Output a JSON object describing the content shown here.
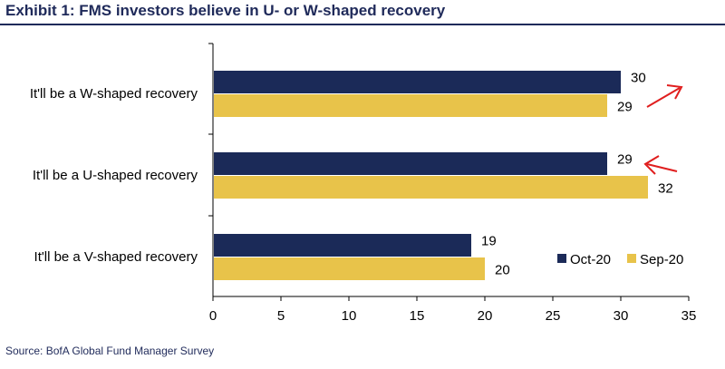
{
  "title": "Exhibit 1: FMS investors believe in U- or W-shaped recovery",
  "source": "Source: BofA Global Fund Manager Survey",
  "colors": {
    "oct": "#1b2a58",
    "sep": "#e8c34a",
    "arrow": "#e01e1e",
    "title": "#1f2a5a"
  },
  "chart_data": {
    "type": "bar",
    "orientation": "horizontal",
    "categories": [
      "It'll be a W-shaped recovery",
      "It'll be a U-shaped recovery",
      "It'll be a V-shaped recovery"
    ],
    "series": [
      {
        "name": "Oct-20",
        "values": [
          30,
          29,
          19
        ]
      },
      {
        "name": "Sep-20",
        "values": [
          29,
          32,
          20
        ]
      }
    ],
    "xlim": [
      0,
      35
    ],
    "xticks": [
      0,
      5,
      10,
      15,
      20,
      25,
      30,
      35
    ],
    "data_labels": true,
    "legend_position": "bottom-right",
    "annotations": [
      "arrow-up-right near W-shaped Oct-20 value",
      "arrow-left pointing at U-shaped Oct-20 value"
    ]
  }
}
